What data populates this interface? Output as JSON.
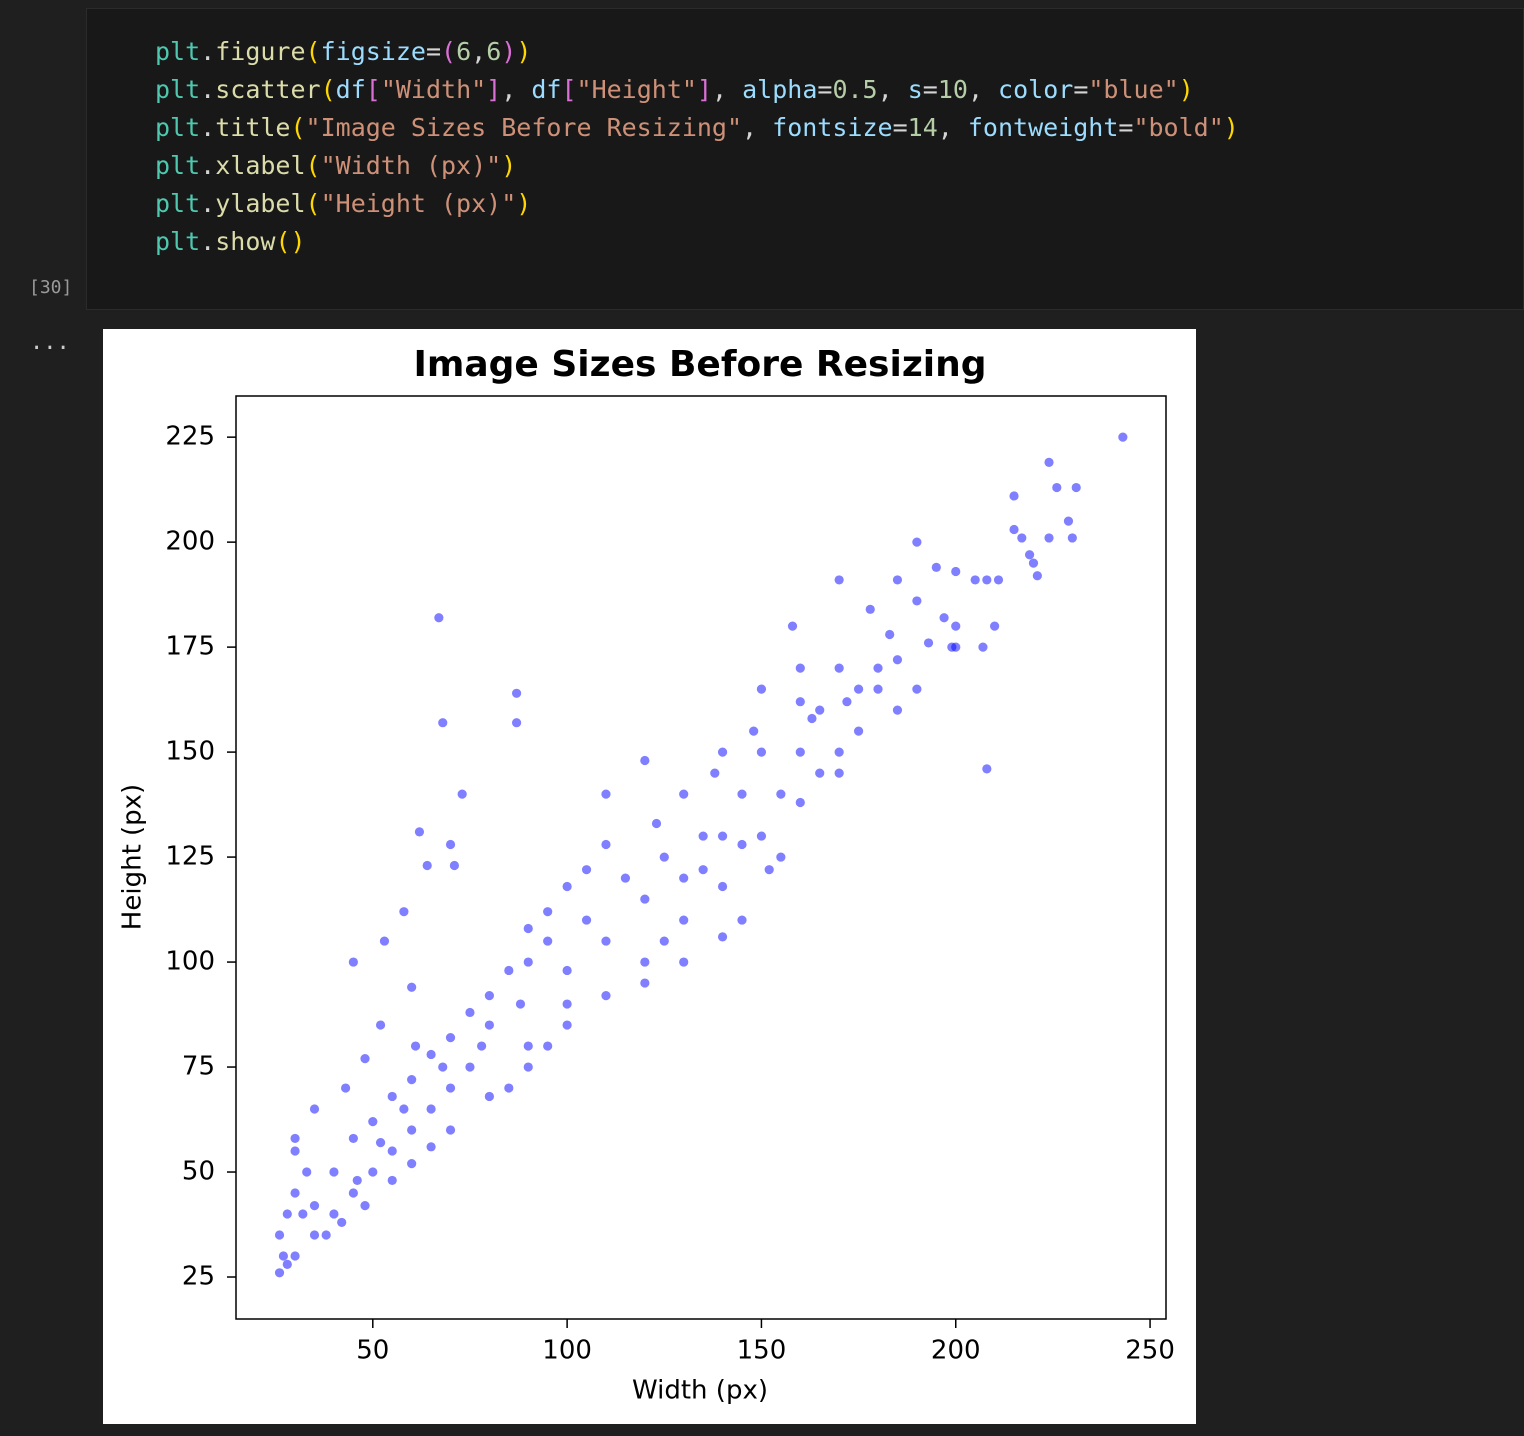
{
  "cell": {
    "execution_count": "[30]",
    "output_marker": "...",
    "lines": [
      [
        {
          "text": "plt",
          "color": "#4ec9b0"
        },
        {
          "text": ".",
          "color": "#d4d4d4"
        },
        {
          "text": "figure",
          "color": "#dcdcaa"
        },
        {
          "text": "(",
          "color": "#ffd700"
        },
        {
          "text": "figsize",
          "color": "#9cdcfe"
        },
        {
          "text": "=",
          "color": "#d4d4d4"
        },
        {
          "text": "(",
          "color": "#da70d6"
        },
        {
          "text": "6",
          "color": "#b5cea8"
        },
        {
          "text": ",",
          "color": "#d4d4d4"
        },
        {
          "text": "6",
          "color": "#b5cea8"
        },
        {
          "text": ")",
          "color": "#da70d6"
        },
        {
          "text": ")",
          "color": "#ffd700"
        }
      ],
      [
        {
          "text": "plt",
          "color": "#4ec9b0"
        },
        {
          "text": ".",
          "color": "#d4d4d4"
        },
        {
          "text": "scatter",
          "color": "#dcdcaa"
        },
        {
          "text": "(",
          "color": "#ffd700"
        },
        {
          "text": "df",
          "color": "#9cdcfe"
        },
        {
          "text": "[",
          "color": "#da70d6"
        },
        {
          "text": "\"Width\"",
          "color": "#ce9178"
        },
        {
          "text": "]",
          "color": "#da70d6"
        },
        {
          "text": ", ",
          "color": "#d4d4d4"
        },
        {
          "text": "df",
          "color": "#9cdcfe"
        },
        {
          "text": "[",
          "color": "#da70d6"
        },
        {
          "text": "\"Height\"",
          "color": "#ce9178"
        },
        {
          "text": "]",
          "color": "#da70d6"
        },
        {
          "text": ", ",
          "color": "#d4d4d4"
        },
        {
          "text": "alpha",
          "color": "#9cdcfe"
        },
        {
          "text": "=",
          "color": "#d4d4d4"
        },
        {
          "text": "0.5",
          "color": "#b5cea8"
        },
        {
          "text": ", ",
          "color": "#d4d4d4"
        },
        {
          "text": "s",
          "color": "#9cdcfe"
        },
        {
          "text": "=",
          "color": "#d4d4d4"
        },
        {
          "text": "10",
          "color": "#b5cea8"
        },
        {
          "text": ", ",
          "color": "#d4d4d4"
        },
        {
          "text": "color",
          "color": "#9cdcfe"
        },
        {
          "text": "=",
          "color": "#d4d4d4"
        },
        {
          "text": "\"blue\"",
          "color": "#ce9178"
        },
        {
          "text": ")",
          "color": "#ffd700"
        }
      ],
      [
        {
          "text": "plt",
          "color": "#4ec9b0"
        },
        {
          "text": ".",
          "color": "#d4d4d4"
        },
        {
          "text": "title",
          "color": "#dcdcaa"
        },
        {
          "text": "(",
          "color": "#ffd700"
        },
        {
          "text": "\"Image Sizes Before Resizing\"",
          "color": "#ce9178"
        },
        {
          "text": ", ",
          "color": "#d4d4d4"
        },
        {
          "text": "fontsize",
          "color": "#9cdcfe"
        },
        {
          "text": "=",
          "color": "#d4d4d4"
        },
        {
          "text": "14",
          "color": "#b5cea8"
        },
        {
          "text": ", ",
          "color": "#d4d4d4"
        },
        {
          "text": "fontweight",
          "color": "#9cdcfe"
        },
        {
          "text": "=",
          "color": "#d4d4d4"
        },
        {
          "text": "\"bold\"",
          "color": "#ce9178"
        },
        {
          "text": ")",
          "color": "#ffd700"
        }
      ],
      [
        {
          "text": "plt",
          "color": "#4ec9b0"
        },
        {
          "text": ".",
          "color": "#d4d4d4"
        },
        {
          "text": "xlabel",
          "color": "#dcdcaa"
        },
        {
          "text": "(",
          "color": "#ffd700"
        },
        {
          "text": "\"Width (px)\"",
          "color": "#ce9178"
        },
        {
          "text": ")",
          "color": "#ffd700"
        }
      ],
      [
        {
          "text": "plt",
          "color": "#4ec9b0"
        },
        {
          "text": ".",
          "color": "#d4d4d4"
        },
        {
          "text": "ylabel",
          "color": "#dcdcaa"
        },
        {
          "text": "(",
          "color": "#ffd700"
        },
        {
          "text": "\"Height (px)\"",
          "color": "#ce9178"
        },
        {
          "text": ")",
          "color": "#ffd700"
        }
      ],
      [
        {
          "text": "plt",
          "color": "#4ec9b0"
        },
        {
          "text": ".",
          "color": "#d4d4d4"
        },
        {
          "text": "show",
          "color": "#dcdcaa"
        },
        {
          "text": "()",
          "color": "#ffd700"
        }
      ]
    ]
  },
  "chart_data": {
    "type": "scatter",
    "title": "Image Sizes Before Resizing",
    "xlabel": "Width (px)",
    "ylabel": "Height (px)",
    "color": "blue",
    "alpha": 0.5,
    "xlim": [
      14.8,
      254.1
    ],
    "ylim": [
      15,
      234.8
    ],
    "xticks": [
      50,
      100,
      150,
      200,
      250
    ],
    "yticks": [
      25,
      50,
      75,
      100,
      125,
      150,
      175,
      200,
      225
    ],
    "x": [
      243,
      224,
      226,
      231,
      215,
      229,
      230,
      215,
      217,
      224,
      219,
      220,
      221,
      211,
      208,
      205,
      200,
      195,
      190,
      185,
      190,
      197,
      200,
      199,
      207,
      210,
      170,
      158,
      178,
      193,
      183,
      208,
      67,
      87,
      87,
      68,
      62,
      70,
      73,
      58,
      64,
      71,
      45,
      53,
      60,
      61,
      52,
      48,
      43,
      35,
      30,
      30,
      33,
      200,
      180,
      170,
      160,
      165,
      150,
      140,
      120,
      110,
      130,
      150,
      160,
      145,
      135,
      125,
      115,
      105,
      95,
      90,
      100,
      110,
      120,
      130,
      140,
      155,
      165,
      175,
      185,
      170,
      155,
      152,
      145,
      140,
      130,
      120,
      100,
      90,
      80,
      75,
      70,
      65,
      60,
      55,
      50,
      45,
      40,
      35,
      30,
      28,
      26,
      27,
      32,
      35,
      40,
      45,
      50,
      55,
      60,
      65,
      70,
      75,
      80,
      85,
      90,
      95,
      100,
      105,
      110,
      60,
      65,
      70,
      80,
      90,
      100,
      110,
      120,
      130,
      140,
      150,
      160,
      170,
      175,
      180,
      38,
      42,
      48,
      55,
      28,
      26,
      30,
      123,
      138,
      148,
      163,
      172,
      85,
      95,
      88,
      78,
      68,
      58,
      52,
      46,
      125,
      135,
      145,
      160,
      190,
      185
    ],
    "values": [
      225,
      219,
      213,
      213,
      211,
      205,
      201,
      203,
      201,
      201,
      197,
      195,
      192,
      191,
      191,
      191,
      193,
      194,
      200,
      191,
      186,
      182,
      180,
      175,
      175,
      180,
      191,
      180,
      184,
      176,
      178,
      146,
      182,
      164,
      157,
      157,
      131,
      128,
      140,
      112,
      123,
      123,
      100,
      105,
      94,
      80,
      85,
      77,
      70,
      65,
      58,
      55,
      50,
      175,
      165,
      170,
      170,
      160,
      165,
      150,
      148,
      140,
      140,
      150,
      150,
      140,
      130,
      125,
      120,
      110,
      105,
      100,
      98,
      105,
      115,
      120,
      130,
      140,
      145,
      155,
      160,
      150,
      125,
      122,
      110,
      106,
      100,
      95,
      90,
      80,
      85,
      75,
      70,
      65,
      60,
      55,
      50,
      45,
      40,
      35,
      30,
      28,
      26,
      30,
      40,
      42,
      50,
      58,
      62,
      68,
      72,
      78,
      82,
      88,
      92,
      98,
      108,
      112,
      118,
      122,
      128,
      52,
      56,
      60,
      68,
      75,
      85,
      92,
      100,
      110,
      118,
      130,
      138,
      145,
      165,
      170,
      35,
      38,
      42,
      48,
      40,
      35,
      45,
      133,
      145,
      155,
      158,
      162,
      70,
      80,
      90,
      80,
      75,
      65,
      57,
      48,
      105,
      122,
      128,
      162,
      165,
      172
    ]
  }
}
